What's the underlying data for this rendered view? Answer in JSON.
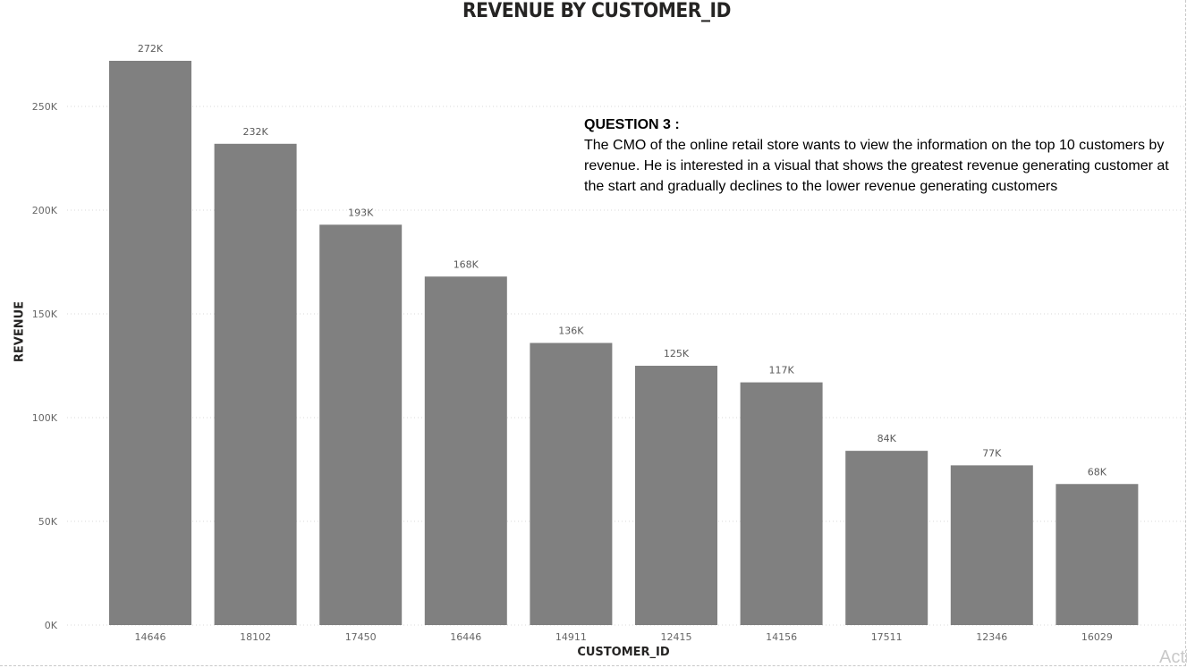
{
  "chart_data": {
    "type": "bar",
    "title": "REVENUE BY CUSTOMER_ID",
    "xlabel": "CUSTOMER_ID",
    "ylabel": "REVENUE",
    "categories": [
      "14646",
      "18102",
      "17450",
      "16446",
      "14911",
      "12415",
      "14156",
      "17511",
      "12346",
      "16029"
    ],
    "values": [
      272000,
      232000,
      193000,
      168000,
      136000,
      125000,
      117000,
      84000,
      77000,
      68000
    ],
    "data_labels": [
      "272K",
      "232K",
      "193K",
      "168K",
      "136K",
      "125K",
      "117K",
      "84K",
      "77K",
      "68K"
    ],
    "y_ticks": [
      0,
      50000,
      100000,
      150000,
      200000,
      250000
    ],
    "y_tick_labels": [
      "0K",
      "50K",
      "100K",
      "150K",
      "200K",
      "250K"
    ],
    "ylim": [
      0,
      272000
    ],
    "grid": true,
    "bar_color": "#808080"
  },
  "annotation": {
    "heading": "QUESTION 3 :",
    "text": "The CMO of the online retail store wants to view the information on the top 10 customers by revenue. He is interested in a visual that shows the greatest revenue generating customer at the start and gradually declines to the lower revenue generating customers"
  },
  "watermark": "Activate Windows"
}
